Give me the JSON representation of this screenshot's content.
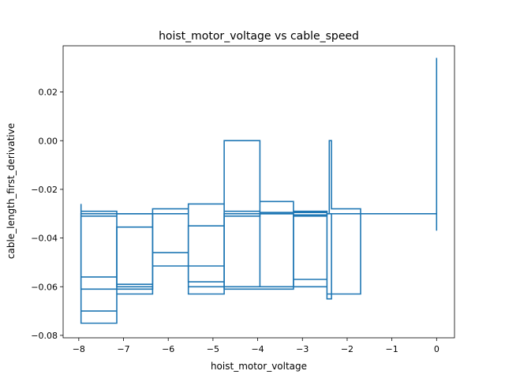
{
  "chart_data": {
    "type": "line",
    "title": "hoist_motor_voltage vs cable_speed",
    "xlabel": "hoist_motor_voltage",
    "ylabel": "cable_length_first_derivative",
    "xlim": [
      -8.35,
      0.4
    ],
    "ylim": [
      -0.081,
      0.039
    ],
    "xticks": [
      -8,
      -7,
      -6,
      -5,
      -4,
      -3,
      -2,
      -1,
      0
    ],
    "xtick_labels": [
      "−8",
      "−7",
      "−6",
      "−5",
      "−4",
      "−3",
      "−2",
      "−1",
      "0"
    ],
    "yticks": [
      -0.08,
      -0.06,
      -0.04,
      -0.02,
      0.0,
      0.02
    ],
    "ytick_labels": [
      "−0.08",
      "−0.06",
      "−0.04",
      "−0.02",
      "0.00",
      "0.02"
    ],
    "grid": false,
    "legend": false,
    "series": [
      {
        "color": "#1f77b4",
        "x": [
          -7.95,
          -7.95,
          -7.15,
          -7.15,
          -7.95,
          -7.95,
          -7.15,
          -7.15,
          -6.35,
          -6.35,
          -7.15,
          -7.15,
          -7.95,
          -7.95,
          -7.15,
          -7.15,
          -6.35,
          -6.35,
          -5.55,
          -5.55,
          -6.35,
          -6.35,
          -5.55,
          -5.55,
          -4.75,
          -4.75,
          -5.55,
          -5.55,
          -4.75,
          -4.75,
          -3.95,
          -3.95,
          -4.75,
          -4.75,
          -3.95,
          -3.95,
          -3.2,
          -3.2,
          -3.95,
          -3.95,
          -3.2,
          -3.2,
          -2.45,
          -2.45,
          -3.2,
          -3.2,
          -2.45,
          -2.45,
          -2.35,
          -2.35,
          -2.45,
          -2.45,
          -1.7,
          -1.7,
          -2.35,
          -2.35,
          -2.4,
          -2.4,
          0.0,
          0.0,
          0.0,
          0.0,
          0.0
        ],
        "y": [
          -0.026,
          -0.075,
          -0.075,
          -0.029,
          -0.029,
          -0.07,
          -0.07,
          -0.03,
          -0.03,
          -0.059,
          -0.059,
          -0.031,
          -0.031,
          -0.056,
          -0.056,
          -0.063,
          -0.063,
          -0.028,
          -0.028,
          -0.046,
          -0.046,
          -0.03,
          -0.03,
          -0.063,
          -0.063,
          -0.026,
          -0.026,
          -0.06,
          -0.06,
          0.0,
          0.0,
          -0.06,
          -0.06,
          -0.029,
          -0.029,
          -0.025,
          -0.025,
          -0.06,
          -0.06,
          -0.03,
          -0.03,
          -0.057,
          -0.057,
          -0.029,
          -0.029,
          -0.031,
          -0.031,
          -0.065,
          -0.065,
          -0.03,
          -0.03,
          -0.063,
          -0.063,
          -0.028,
          -0.028,
          0.0,
          0.0,
          -0.03,
          -0.03,
          0.0,
          -0.037,
          0.034,
          0.0
        ]
      },
      {
        "color": "#1f77b4",
        "x": [
          -7.95,
          -6.35,
          -6.35,
          -7.95,
          -7.95,
          -6.35,
          -6.35,
          -7.15,
          -7.15,
          -6.35,
          -6.35,
          -4.75,
          -4.75,
          -5.55,
          -5.55,
          -4.75,
          -4.75,
          -3.2,
          -3.2,
          -4.75,
          -4.75,
          -3.95,
          -3.95,
          -2.45,
          -2.45,
          -3.2,
          -3.2,
          -2.45
        ],
        "y": [
          -0.03,
          -0.03,
          -0.061,
          -0.061,
          -0.03,
          -0.03,
          -0.0355,
          -0.0355,
          -0.06,
          -0.06,
          -0.0515,
          -0.0515,
          -0.035,
          -0.035,
          -0.058,
          -0.058,
          -0.03,
          -0.03,
          -0.061,
          -0.061,
          -0.031,
          -0.031,
          -0.0295,
          -0.0295,
          -0.0305,
          -0.0305,
          -0.06,
          -0.06
        ]
      }
    ]
  }
}
